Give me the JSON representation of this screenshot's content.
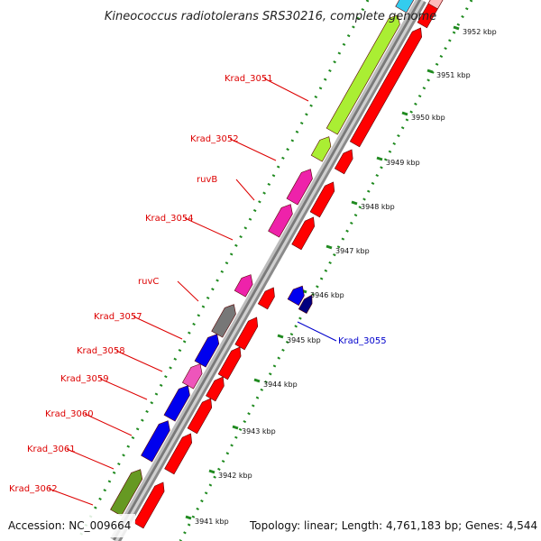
{
  "title": "Kineococcus radiotolerans SRS30216, complete genome",
  "accession_label": "Accession: NC_009664",
  "topology_label": "Topology: linear; Length: 4,761,183 bp; Genes: 4,544",
  "colors": {
    "label_red": "#dd0000",
    "label_blue": "#0000cc",
    "backbone": "#9a9a9a",
    "scale_green": "#1f8a1f",
    "cds": "#ff0000"
  },
  "scale_ticks": [
    {
      "label": "3952 kbp"
    },
    {
      "label": "3951 kbp"
    },
    {
      "label": "3950 kbp"
    },
    {
      "label": "3949 kbp"
    },
    {
      "label": "3948 kbp"
    },
    {
      "label": "3947 kbp"
    },
    {
      "label": "3946 kbp"
    },
    {
      "label": "3945 kbp"
    },
    {
      "label": "3944 kbp"
    },
    {
      "label": "3943 kbp"
    },
    {
      "label": "3942 kbp"
    },
    {
      "label": "3941 kbp"
    }
  ],
  "genes": [
    {
      "label": "Krad_3051",
      "color": "#aaee33",
      "strand": "reverse"
    },
    {
      "label": "Krad_3052",
      "color": "#aaee33",
      "strand": "reverse"
    },
    {
      "label": "ruvB",
      "color": "#ee22aa",
      "strand": "reverse"
    },
    {
      "label": "Krad_3054",
      "color": "#ee22aa",
      "strand": "reverse"
    },
    {
      "label": "ruvC",
      "color": "#ee22aa",
      "strand": "reverse"
    },
    {
      "label": "Krad_3057",
      "color": "#777777",
      "strand": "reverse"
    },
    {
      "label": "Krad_3058",
      "color": "#0000ee",
      "strand": "reverse"
    },
    {
      "label": "Krad_3059",
      "color": "#ee55bb",
      "strand": "reverse"
    },
    {
      "label": "Krad_3060",
      "color": "#0000ee",
      "strand": "reverse"
    },
    {
      "label": "Krad_3061",
      "color": "#0000ee",
      "strand": "reverse"
    },
    {
      "label": "Krad_3062",
      "color": "#669922",
      "strand": "reverse"
    },
    {
      "label": "Krad_3055",
      "color": "#0000ee",
      "strand": "forward"
    }
  ]
}
